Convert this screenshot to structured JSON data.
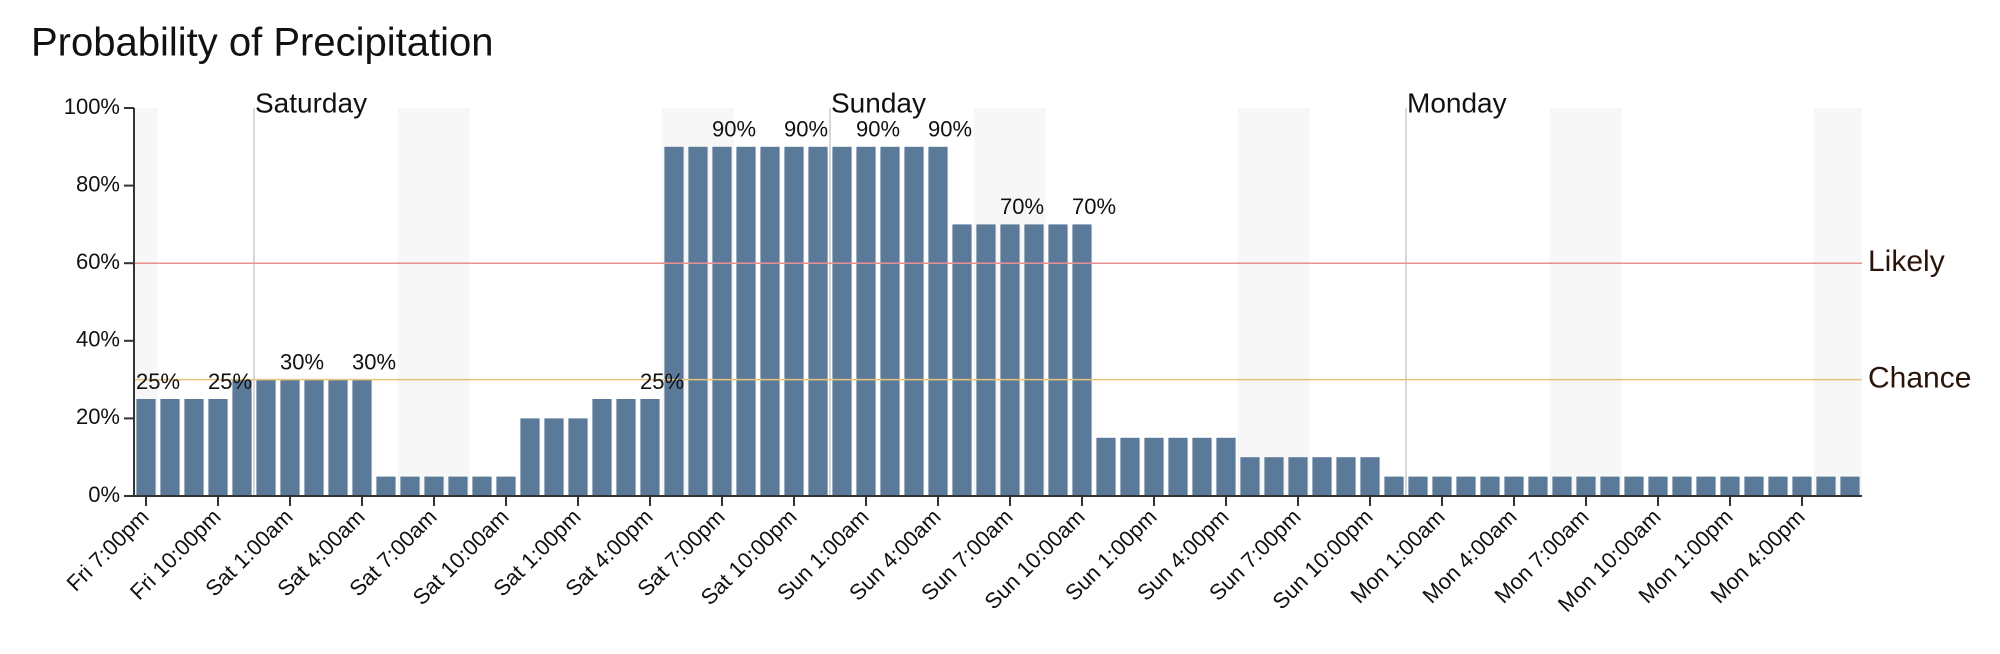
{
  "chart_data": {
    "type": "bar",
    "title": "Probability of Precipitation",
    "categories": [
      "Fri 7:00pm",
      null,
      null,
      "Fri 10:00pm",
      null,
      null,
      "Sat 1:00am",
      null,
      null,
      "Sat 4:00am",
      null,
      null,
      "Sat 7:00am",
      null,
      null,
      "Sat 10:00am",
      null,
      null,
      "Sat 1:00pm",
      null,
      null,
      "Sat 4:00pm",
      null,
      null,
      "Sat 7:00pm",
      null,
      null,
      "Sat 10:00pm",
      null,
      null,
      "Sun 1:00am",
      null,
      null,
      "Sun 4:00am",
      null,
      null,
      "Sun 7:00am",
      null,
      null,
      "Sun 10:00am",
      null,
      null,
      "Sun 1:00pm",
      null,
      null,
      "Sun 4:00pm",
      null,
      null,
      "Sun 7:00pm",
      null,
      null,
      "Sun 10:00pm",
      null,
      null,
      "Mon 1:00am",
      null,
      null,
      "Mon 4:00am",
      null,
      null,
      "Mon 7:00am",
      null,
      null,
      "Mon 10:00am",
      null,
      null,
      "Mon 1:00pm",
      null,
      null,
      "Mon 4:00pm",
      null,
      null
    ],
    "values": [
      25,
      25,
      25,
      25,
      30,
      30,
      30,
      30,
      30,
      30,
      5,
      5,
      5,
      5,
      5,
      5,
      20,
      20,
      20,
      25,
      25,
      25,
      90,
      90,
      90,
      90,
      90,
      90,
      90,
      90,
      90,
      90,
      90,
      90,
      70,
      70,
      70,
      70,
      70,
      70,
      15,
      15,
      15,
      15,
      15,
      15,
      10,
      10,
      10,
      10,
      10,
      10,
      5,
      5,
      5,
      5,
      5,
      5,
      5,
      5,
      5,
      5,
      5,
      5,
      5,
      5,
      5,
      5,
      5,
      5,
      5,
      5
    ],
    "value_labels": [
      "25%",
      null,
      null,
      "25%",
      null,
      null,
      "30%",
      null,
      null,
      "30%",
      null,
      null,
      null,
      null,
      null,
      null,
      null,
      null,
      null,
      null,
      null,
      "25%",
      null,
      null,
      "90%",
      null,
      null,
      "90%",
      null,
      null,
      "90%",
      null,
      null,
      "90%",
      null,
      null,
      "70%",
      null,
      null,
      "70%",
      null,
      null,
      null,
      null,
      null,
      null,
      null,
      null,
      null,
      null,
      null,
      null,
      null,
      null,
      null,
      null,
      null,
      null,
      null,
      null,
      null,
      null,
      null,
      null,
      null,
      null,
      null,
      null,
      null,
      null,
      null,
      null
    ],
    "color": "#5b7a99",
    "ylim": [
      0,
      100
    ],
    "yticks": [
      {
        "value": 0,
        "label": "0%"
      },
      {
        "value": 20,
        "label": "20%"
      },
      {
        "value": 40,
        "label": "40%"
      },
      {
        "value": 60,
        "label": "60%"
      },
      {
        "value": 80,
        "label": "80%"
      },
      {
        "value": 100,
        "label": "100%"
      }
    ],
    "days": [
      "Saturday",
      "Sunday",
      "Monday"
    ],
    "reference_lines": [
      {
        "label": "Likely",
        "value": 60,
        "color": "#e89090"
      },
      {
        "label": "Chance",
        "value": 30,
        "color": "#e8c27a"
      }
    ]
  }
}
